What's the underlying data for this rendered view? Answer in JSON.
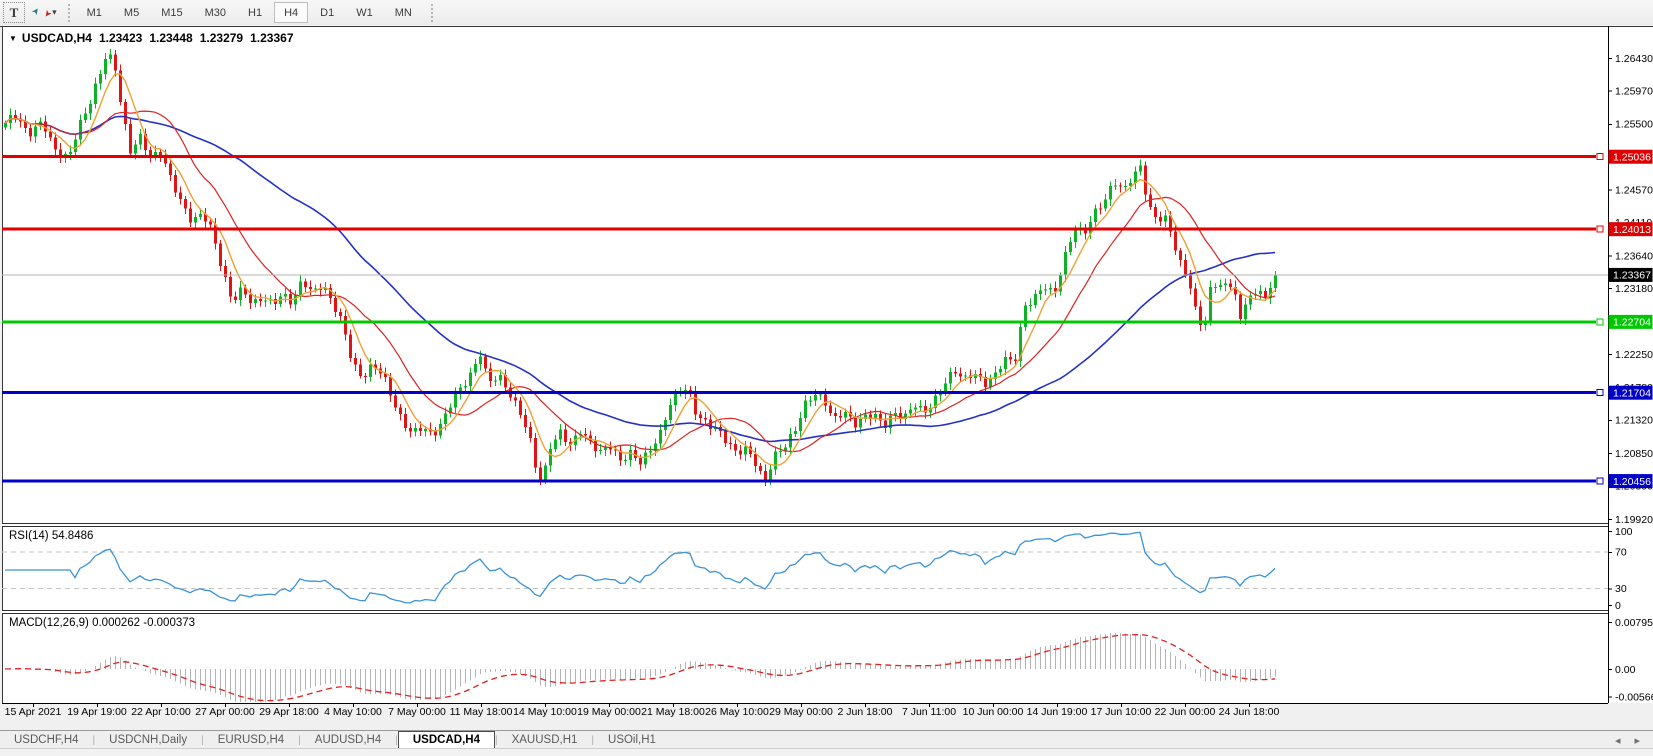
{
  "toolbar": {
    "text_tool": "T",
    "timeframes": [
      {
        "label": "M1",
        "active": false
      },
      {
        "label": "M5",
        "active": false
      },
      {
        "label": "M15",
        "active": false
      },
      {
        "label": "M30",
        "active": false
      },
      {
        "label": "H1",
        "active": false
      },
      {
        "label": "H4",
        "active": true
      },
      {
        "label": "D1",
        "active": false
      },
      {
        "label": "W1",
        "active": false
      },
      {
        "label": "MN",
        "active": false
      }
    ]
  },
  "icons": {
    "collapse": "▼",
    "caret": "▾",
    "arrow_ne": "➤",
    "arrow_sw": "➤",
    "tab_prev": "◂",
    "tab_next": "▸",
    "divider": "|"
  },
  "chart": {
    "title": {
      "symbol": "USDCAD,H4",
      "open": "1.23423",
      "high": "1.23448",
      "low": "1.23279",
      "close": "1.23367"
    },
    "colors": {
      "up": "#0eb227",
      "down": "#e01414",
      "ma_fast": "#efa135",
      "ma_mid": "#dd2222",
      "ma_slow": "#2431c4",
      "bid_line": "#b4b4b4",
      "bid_box": "#000000",
      "rsi": "#3a93d8",
      "rsi_level": "#c3c3c3",
      "macd_hist": "#b4b4b4",
      "macd_signal": "#e02020",
      "axis_text": "#000000",
      "border": "#3a3a3a"
    },
    "price_axis": {
      "ticks": [
        "1.26430",
        "1.25970",
        "1.25500",
        "1.24570",
        "1.24110",
        "1.23640",
        "1.23180",
        "1.22250",
        "1.21780",
        "1.21320",
        "1.20850",
        "1.20390",
        "1.19920"
      ]
    },
    "hlines": [
      {
        "price": 1.25036,
        "label": "1.25036",
        "color": "#e00000"
      },
      {
        "price": 1.24013,
        "label": "1.24013",
        "color": "#e00000"
      },
      {
        "price": 1.22704,
        "label": "1.22704",
        "color": "#00c800"
      },
      {
        "price": 1.21704,
        "label": "1.21704",
        "color": "#0000c8"
      },
      {
        "price": 1.20456,
        "label": "1.20456",
        "color": "#0000c8"
      }
    ],
    "bid": {
      "price": 1.23367,
      "label": "1.23367"
    },
    "time_axis": {
      "labels": [
        "15 Apr 2021",
        "19 Apr 19:00",
        "22 Apr 10:00",
        "27 Apr 00:00",
        "29 Apr 18:00",
        "4 May 10:00",
        "7 May 00:00",
        "11 May 18:00",
        "14 May 10:00",
        "19 May 00:00",
        "21 May 18:00",
        "26 May 10:00",
        "29 May 00:00",
        "2 Jun 18:00",
        "7 Jun 11:00",
        "10 Jun 00:00",
        "14 Jun 19:00",
        "17 Jun 10:00",
        "22 Jun 00:00",
        "24 Jun 18:00"
      ]
    },
    "indicators": {
      "rsi": {
        "label": "RSI(14) 54.8486",
        "period": 14,
        "levels": [
          70,
          30
        ],
        "ticks": [
          "100",
          "70",
          "30",
          "0"
        ],
        "current": 54.8486
      },
      "macd": {
        "label": "MACD(12,26,9) 0.000262 -0.000373",
        "fast": 12,
        "slow": 26,
        "signal": 9,
        "ticks": [
          "0.007959",
          "0.00",
          "-0.005663"
        ],
        "current": 0.000262,
        "current_signal": -0.000373
      }
    },
    "ma_periods": {
      "fast": 6,
      "mid": 16,
      "slow": 48
    },
    "path_anchors": [
      [
        0,
        1.2545
      ],
      [
        14,
        1.2562
      ],
      [
        28,
        1.2532
      ],
      [
        42,
        1.2556
      ],
      [
        56,
        1.2512
      ],
      [
        68,
        1.25
      ],
      [
        78,
        1.2542
      ],
      [
        88,
        1.2572
      ],
      [
        98,
        1.2615
      ],
      [
        106,
        1.2652
      ],
      [
        114,
        1.264
      ],
      [
        122,
        1.2565
      ],
      [
        130,
        1.251
      ],
      [
        140,
        1.2528
      ],
      [
        150,
        1.2502
      ],
      [
        160,
        1.2512
      ],
      [
        170,
        1.2478
      ],
      [
        180,
        1.2442
      ],
      [
        192,
        1.2408
      ],
      [
        202,
        1.2422
      ],
      [
        212,
        1.2398
      ],
      [
        222,
        1.2345
      ],
      [
        232,
        1.2302
      ],
      [
        242,
        1.2318
      ],
      [
        252,
        1.2292
      ],
      [
        262,
        1.2302
      ],
      [
        272,
        1.2296
      ],
      [
        282,
        1.2312
      ],
      [
        292,
        1.23
      ],
      [
        302,
        1.233
      ],
      [
        312,
        1.2308
      ],
      [
        322,
        1.232
      ],
      [
        332,
        1.2298
      ],
      [
        342,
        1.2272
      ],
      [
        352,
        1.2215
      ],
      [
        362,
        1.219
      ],
      [
        372,
        1.2206
      ],
      [
        382,
        1.2196
      ],
      [
        392,
        1.2162
      ],
      [
        402,
        1.2132
      ],
      [
        412,
        1.2116
      ],
      [
        422,
        1.2122
      ],
      [
        432,
        1.2106
      ],
      [
        442,
        1.2126
      ],
      [
        452,
        1.2162
      ],
      [
        462,
        1.2182
      ],
      [
        472,
        1.2202
      ],
      [
        480,
        1.2226
      ],
      [
        488,
        1.2182
      ],
      [
        498,
        1.2192
      ],
      [
        508,
        1.2172
      ],
      [
        518,
        1.215
      ],
      [
        528,
        1.2118
      ],
      [
        536,
        1.2062
      ],
      [
        542,
        1.2042
      ],
      [
        550,
        1.2092
      ],
      [
        560,
        1.2112
      ],
      [
        570,
        1.2096
      ],
      [
        580,
        1.212
      ],
      [
        590,
        1.2102
      ],
      [
        600,
        1.2086
      ],
      [
        610,
        1.2092
      ],
      [
        620,
        1.2072
      ],
      [
        630,
        1.2086
      ],
      [
        640,
        1.2076
      ],
      [
        650,
        1.2092
      ],
      [
        660,
        1.2112
      ],
      [
        670,
        1.2152
      ],
      [
        680,
        1.2172
      ],
      [
        688,
        1.2176
      ],
      [
        696,
        1.2142
      ],
      [
        706,
        1.213
      ],
      [
        716,
        1.212
      ],
      [
        726,
        1.21
      ],
      [
        736,
        1.2082
      ],
      [
        746,
        1.2092
      ],
      [
        756,
        1.2072
      ],
      [
        764,
        1.2046
      ],
      [
        774,
        1.2082
      ],
      [
        784,
        1.2092
      ],
      [
        794,
        1.2112
      ],
      [
        804,
        1.2152
      ],
      [
        814,
        1.2172
      ],
      [
        824,
        1.2162
      ],
      [
        834,
        1.2132
      ],
      [
        844,
        1.2142
      ],
      [
        854,
        1.2122
      ],
      [
        864,
        1.2136
      ],
      [
        874,
        1.2142
      ],
      [
        884,
        1.2126
      ],
      [
        894,
        1.2142
      ],
      [
        904,
        1.2132
      ],
      [
        914,
        1.2152
      ],
      [
        924,
        1.2142
      ],
      [
        934,
        1.2162
      ],
      [
        944,
        1.2186
      ],
      [
        954,
        1.2202
      ],
      [
        964,
        1.2186
      ],
      [
        974,
        1.2196
      ],
      [
        984,
        1.2182
      ],
      [
        994,
        1.2196
      ],
      [
        1004,
        1.2222
      ],
      [
        1014,
        1.2212
      ],
      [
        1024,
        1.2288
      ],
      [
        1034,
        1.2302
      ],
      [
        1044,
        1.2322
      ],
      [
        1054,
        1.2312
      ],
      [
        1064,
        1.2362
      ],
      [
        1074,
        1.2402
      ],
      [
        1084,
        1.2392
      ],
      [
        1094,
        1.2422
      ],
      [
        1104,
        1.2442
      ],
      [
        1114,
        1.2472
      ],
      [
        1124,
        1.2458
      ],
      [
        1132,
        1.2476
      ],
      [
        1140,
        1.2486
      ],
      [
        1148,
        1.2432
      ],
      [
        1156,
        1.2412
      ],
      [
        1164,
        1.2422
      ],
      [
        1172,
        1.2392
      ],
      [
        1180,
        1.2356
      ],
      [
        1190,
        1.2322
      ],
      [
        1197,
        1.2272
      ],
      [
        1203,
        1.2257
      ],
      [
        1210,
        1.2312
      ],
      [
        1218,
        1.2326
      ],
      [
        1226,
        1.232
      ],
      [
        1233,
        1.233
      ],
      [
        1240,
        1.2272
      ],
      [
        1247,
        1.2312
      ],
      [
        1254,
        1.2302
      ],
      [
        1260,
        1.2316
      ],
      [
        1266,
        1.2302
      ],
      [
        1271,
        1.2322
      ],
      [
        1275,
        1.2332
      ],
      [
        1279,
        1.23367
      ]
    ]
  },
  "tabs": {
    "items": [
      {
        "label": "USDCHF,H4",
        "active": false
      },
      {
        "label": "USDCNH,Daily",
        "active": false
      },
      {
        "label": "EURUSD,H4",
        "active": false
      },
      {
        "label": "AUDUSD,H4",
        "active": false
      },
      {
        "label": "USDCAD,H4",
        "active": true
      },
      {
        "label": "XAUUSD,H1",
        "active": false
      },
      {
        "label": "USOil,H1",
        "active": false
      }
    ]
  }
}
